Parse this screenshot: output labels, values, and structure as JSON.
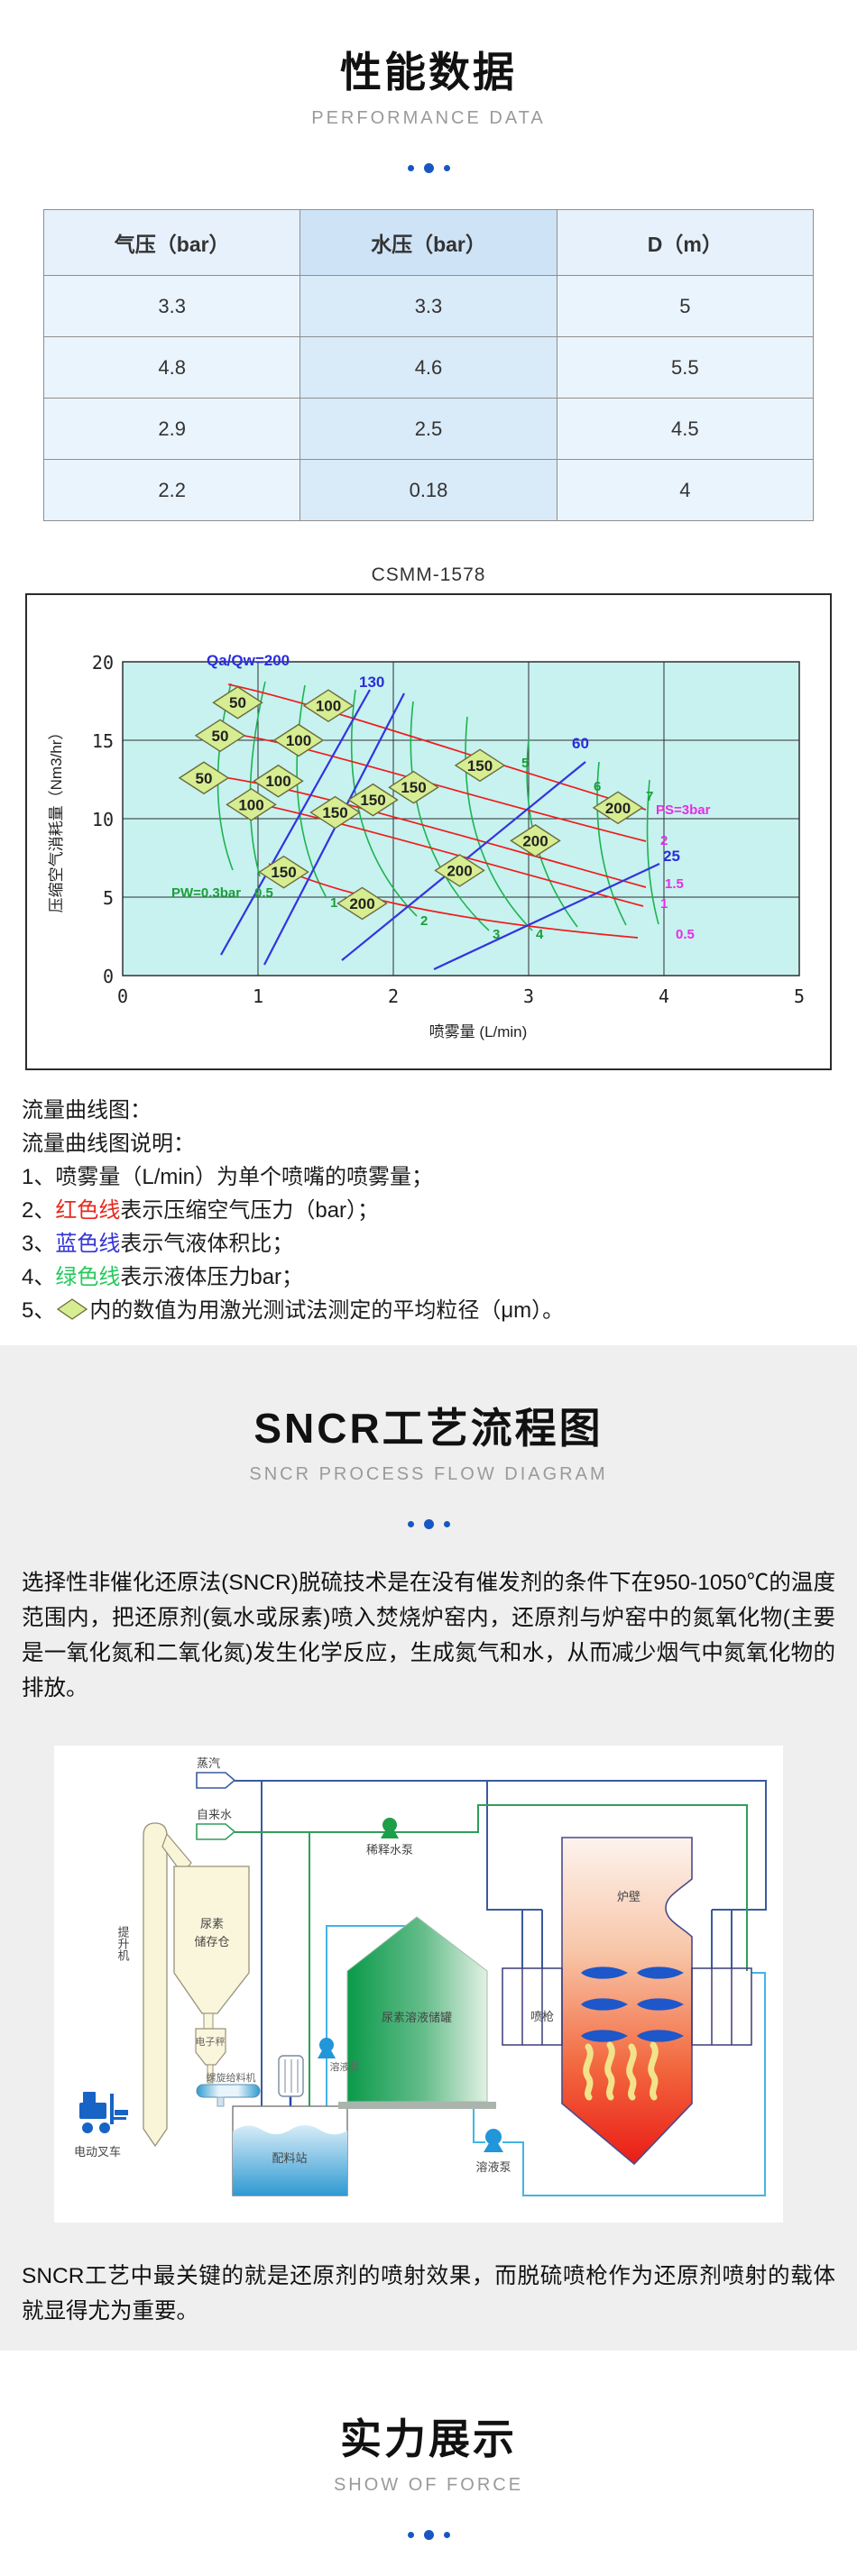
{
  "colors": {
    "accent_blue": "#1857c2",
    "section_gray": "#efefef",
    "table_header_bg": "#e7f1fb",
    "table_header_mid_bg": "#cfe3f6",
    "table_cell_bg": "#eaf4fd",
    "table_cell_mid_bg": "#d9eaf8",
    "chart_plot_bg": "#c7f2f0",
    "chart_red_line": "#f11c1c",
    "chart_blue_line": "#3333e0",
    "chart_green_line": "#1eb34e",
    "chart_magenta_label": "#e52ee5",
    "diamond_fill": "#d6ed92"
  },
  "performance": {
    "title": "性能数据",
    "subtitle": "PERFORMANCE DATA",
    "table": {
      "headers": [
        "气压（bar）",
        "水压（bar）",
        "D（m）"
      ],
      "rows": [
        [
          "3.3",
          "3.3",
          "5"
        ],
        [
          "4.8",
          "4.6",
          "5.5"
        ],
        [
          "2.9",
          "2.5",
          "4.5"
        ],
        [
          "2.2",
          "0.18",
          "4"
        ]
      ]
    },
    "chart_title": "CSMM-1578",
    "notes": [
      {
        "pre": "流量曲线图："
      },
      {
        "pre": "流量曲线图说明："
      },
      {
        "pre": "1、喷雾量（L/min）为单个喷嘴的喷雾量；"
      },
      {
        "pre": "2、",
        "term": "红色线",
        "post": "表示压缩空气压力（bar）；"
      },
      {
        "pre": "3、",
        "term": "蓝色线",
        "post": "表示气液体积比；"
      },
      {
        "pre": "4、",
        "term": "绿色线",
        "post": "表示液体压力bar；"
      },
      {
        "pre": "5、",
        "post": "内的数值为用激光测试法测定的平均粒径（μm）。"
      }
    ]
  },
  "chart_data": {
    "type": "line",
    "title": "CSMM-1578",
    "xlabel": "喷雾量 (L/min)",
    "ylabel": "压缩空气消耗量（Nm3/hr）",
    "xlim": [
      0,
      5
    ],
    "ylim": [
      0,
      20
    ],
    "x_ticks": [
      "0",
      "1",
      "2",
      "3",
      "4",
      "5"
    ],
    "y_ticks": [
      "20",
      "15",
      "10",
      "5",
      "0"
    ],
    "grid": true,
    "series": [
      {
        "name": "红色线：压缩空气压力 PS (bar)",
        "color": "#f11c1c",
        "values": [
          3,
          2,
          1.5,
          1,
          0.5
        ]
      },
      {
        "name": "蓝色线：气液体积比 Qa/Qw",
        "color": "#3333e0",
        "values": [
          200,
          130,
          60,
          25
        ]
      },
      {
        "name": "绿色线：液体压力 PW (bar)",
        "color": "#1eb34e",
        "values": [
          0.3,
          0.5,
          1,
          2,
          3,
          4,
          5,
          6,
          7
        ]
      }
    ],
    "line_labels": {
      "qa200": "Qa/Qw=200",
      "qa130": "130",
      "qa60": "60",
      "qa25": "25",
      "ps3": "PS=3bar",
      "ps2": "2",
      "ps15": "1.5",
      "ps1": "1",
      "ps05": "0.5",
      "pw03": "PW=0.3bar",
      "pw05": "0.5",
      "pw1": "1",
      "pw2": "2",
      "pw3": "3",
      "pw4": "4",
      "pw5": "5",
      "pw6": "6",
      "pw7": "7"
    },
    "diamonds": [
      {
        "label": "50",
        "x": 0.85,
        "y": 17.4
      },
      {
        "label": "50",
        "x": 0.72,
        "y": 15.3
      },
      {
        "label": "50",
        "x": 0.6,
        "y": 12.6
      },
      {
        "label": "100",
        "x": 1.52,
        "y": 17.2
      },
      {
        "label": "100",
        "x": 1.3,
        "y": 15.0
      },
      {
        "label": "100",
        "x": 1.15,
        "y": 12.4
      },
      {
        "label": "100",
        "x": 0.95,
        "y": 10.9
      },
      {
        "label": "150",
        "x": 2.64,
        "y": 13.4
      },
      {
        "label": "150",
        "x": 2.15,
        "y": 12.0
      },
      {
        "label": "150",
        "x": 1.85,
        "y": 11.2
      },
      {
        "label": "150",
        "x": 1.57,
        "y": 10.4
      },
      {
        "label": "150",
        "x": 1.19,
        "y": 6.6
      },
      {
        "label": "200",
        "x": 3.66,
        "y": 10.7
      },
      {
        "label": "200",
        "x": 3.05,
        "y": 8.6
      },
      {
        "label": "200",
        "x": 2.49,
        "y": 6.7
      },
      {
        "label": "200",
        "x": 1.77,
        "y": 4.6
      }
    ]
  },
  "sncr": {
    "title": "SNCR工艺流程图",
    "subtitle": "SNCR PROCESS FLOW DIAGRAM",
    "paragraph": "选择性非催化还原法(SNCR)脱硫技术是在没有催发剂的条件下在950-1050℃的温度范围内，把还原剂(氨水或尿素)喷入焚烧炉窑内，还原剂与炉窑中的氮氧化物(主要是一氧化氮和二氧化氮)发生化学反应，生成氮气和水，从而减少烟气中氮氧化物的排放。",
    "closing": "SNCR工艺中最关键的就是还原剂的喷射效果，而脱硫喷枪作为还原剂喷射的载体就显得尤为重要。",
    "diagram": {
      "labels": {
        "steam": "蒸汽",
        "tap_water": "自来水",
        "elevator": "提升机",
        "urea_silo_1": "尿素",
        "urea_silo_2": "储存仓",
        "scale": "电子秤",
        "screw_feeder": "螺旋给料机",
        "batching_station": "配料站",
        "forklift": "电动叉车",
        "dilution_pump": "稀释水泵",
        "urea_tank": "尿素溶液储罐",
        "solution_pump_1": "溶液泵",
        "solution_pump_2": "溶液泵",
        "furnace_wall": "炉壁",
        "spray_gun": "喷枪"
      }
    }
  },
  "strength": {
    "title": "实力展示",
    "subtitle": "SHOW OF FORCE"
  }
}
